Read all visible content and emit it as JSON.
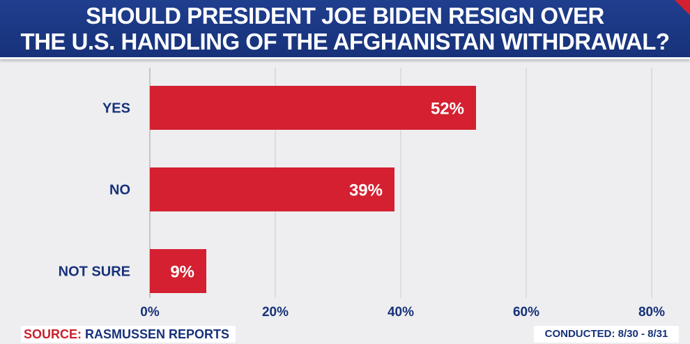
{
  "header": {
    "title_line1": "SHOULD PRESIDENT JOE BIDEN RESIGN OVER",
    "title_line2": "THE U.S. HANDLING OF THE AFGHANISTAN WITHDRAWAL?"
  },
  "footer": {
    "source_label": "SOURCE:",
    "source_value": "RASMUSSEN REPORTS",
    "conducted": "CONDUCTED: 8/30 - 8/31"
  },
  "colors": {
    "header_bg": "#1f3e8e",
    "bar": "#d42030",
    "label_text": "#17327a",
    "gridline": "#c9c9cf"
  },
  "chart_data": {
    "type": "bar",
    "orientation": "horizontal",
    "title": "SHOULD PRESIDENT JOE BIDEN RESIGN OVER THE U.S. HANDLING OF THE AFGHANISTAN WITHDRAWAL?",
    "categories": [
      "YES",
      "NO",
      "NOT SURE"
    ],
    "values": [
      52,
      39,
      9
    ],
    "value_labels": [
      "52%",
      "39%",
      "9%"
    ],
    "xlim": [
      0,
      80
    ],
    "x_ticks": [
      0,
      20,
      40,
      60,
      80
    ],
    "x_tick_labels": [
      "0%",
      "20%",
      "40%",
      "60%",
      "80%"
    ],
    "grid": true,
    "legend": "none"
  }
}
